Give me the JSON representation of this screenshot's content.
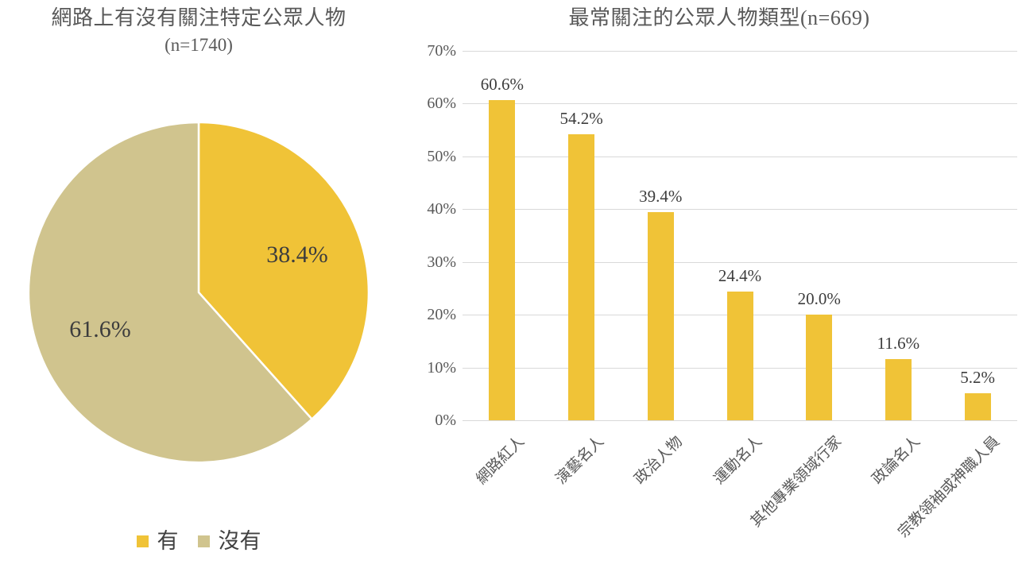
{
  "background": "#ffffff",
  "colors": {
    "title_text": "#595959",
    "axis_text": "#595959",
    "data_label_text": "#3d3d3d",
    "gridline": "#d9d9d9",
    "yellow": "#F0C337",
    "tan": "#D0C48E"
  },
  "chart_data": [
    {
      "type": "pie",
      "title": "網路上有沒有關注特定公眾人物",
      "subtitle": "(n=1740)",
      "legend_position": "bottom",
      "start_angle_deg": 0,
      "direction": "clockwise",
      "slices": [
        {
          "label": "有",
          "value": 38.4,
          "display": "38.4%",
          "color": "#F0C337"
        },
        {
          "label": "沒有",
          "value": 61.6,
          "display": "61.6%",
          "color": "#D0C48E"
        }
      ]
    },
    {
      "type": "bar",
      "title": "最常關注的公眾人物類型(n=669)",
      "categories": [
        "網路紅人",
        "演藝名人",
        "政治人物",
        "運動名人",
        "其他專業領域行家",
        "政論名人",
        "宗教領袖或神職人員"
      ],
      "values": [
        60.6,
        54.2,
        39.4,
        24.4,
        20.0,
        11.6,
        5.2
      ],
      "data_labels": [
        "60.6%",
        "54.2%",
        "39.4%",
        "24.4%",
        "20.0%",
        "11.6%",
        "5.2%"
      ],
      "xlabel": "",
      "ylabel": "",
      "ylim": [
        0,
        70
      ],
      "ytick_step": 10,
      "ytick_labels": [
        "0%",
        "10%",
        "20%",
        "30%",
        "40%",
        "50%",
        "60%",
        "70%"
      ],
      "grid": true,
      "legend": "none",
      "bar_color": "#F0C337"
    }
  ]
}
